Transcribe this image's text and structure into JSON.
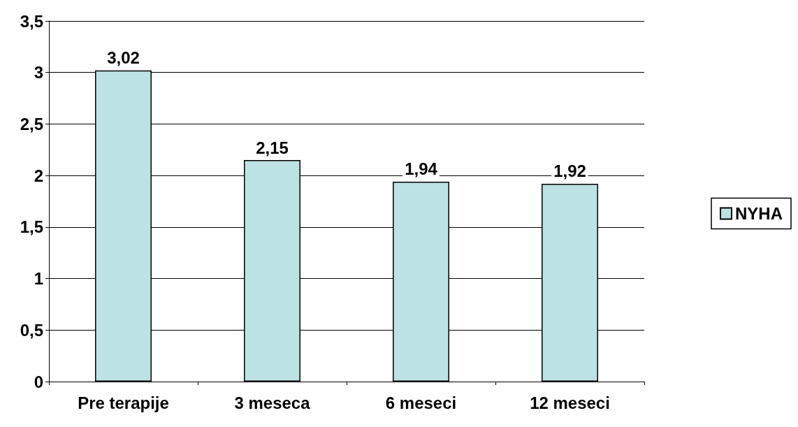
{
  "chart_data": {
    "type": "bar",
    "categories": [
      "Pre terapije",
      "3 meseca",
      "6 meseci",
      "12 meseci"
    ],
    "series": [
      {
        "name": "NYHA",
        "color": "#bde2e4",
        "values": [
          3.02,
          2.15,
          1.94,
          1.92
        ],
        "value_labels": [
          "3,02",
          "2,15",
          "1,94",
          "1,92"
        ]
      }
    ],
    "ylim": [
      0,
      3.5
    ],
    "yticks": [
      0,
      {
        "value": 0.5,
        "label": "0,5"
      },
      1,
      {
        "value": 1.5,
        "label": "1,5"
      },
      2,
      {
        "value": 2.5,
        "label": "2,5"
      },
      3,
      {
        "value": 3.5,
        "label": "3,5"
      }
    ],
    "grid": "y",
    "legend": "right"
  }
}
